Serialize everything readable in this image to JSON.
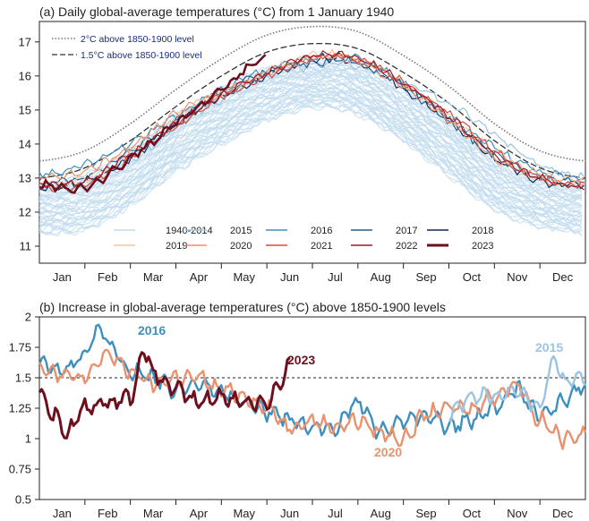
{
  "chart_data": [
    {
      "type": "line",
      "title": "(a) Daily global-average temperatures (°C) from 1 January 1940",
      "xlabel": "",
      "ylabel": "",
      "ylim": [
        10.5,
        17.6
      ],
      "yticks": [
        11,
        12,
        13,
        14,
        15,
        16,
        17
      ],
      "x_months": [
        "Jan",
        "Feb",
        "Mar",
        "Apr",
        "May",
        "Jun",
        "Jul",
        "Aug",
        "Sep",
        "Oct",
        "Nov",
        "Dec"
      ],
      "reference_lines": [
        {
          "name": "2°C above 1850-1900 level",
          "style": "dotted",
          "monthly": [
            13.5,
            13.8,
            14.6,
            15.6,
            16.5,
            17.2,
            17.45,
            17.3,
            16.6,
            15.7,
            14.6,
            13.8,
            13.5
          ]
        },
        {
          "name": "1.5°C above 1850-1900 level",
          "style": "dashed",
          "monthly": [
            13.0,
            13.3,
            14.1,
            15.1,
            16.0,
            16.7,
            16.95,
            16.8,
            16.1,
            15.2,
            14.1,
            13.3,
            13.0
          ]
        }
      ],
      "band": {
        "name": "1940-2014",
        "lower_monthly": [
          11.4,
          11.5,
          12.2,
          13.2,
          14.0,
          14.7,
          15.1,
          14.9,
          14.1,
          13.1,
          12.1,
          11.6,
          11.4
        ],
        "upper_monthly": [
          12.8,
          13.1,
          13.8,
          14.8,
          15.6,
          16.2,
          16.4,
          16.3,
          15.6,
          14.7,
          13.6,
          13.0,
          12.8
        ]
      },
      "series": [
        {
          "name": "2015",
          "color": "#9cc4e2",
          "monthly": [
            12.7,
            12.8,
            13.5,
            14.5,
            15.3,
            16.0,
            16.3,
            16.3,
            15.8,
            15.2,
            14.3,
            13.4,
            13.0
          ]
        },
        {
          "name": "2016",
          "color": "#3d8fc0",
          "monthly": [
            13.1,
            13.4,
            14.0,
            14.8,
            15.6,
            16.2,
            16.5,
            16.5,
            15.8,
            14.8,
            13.9,
            13.2,
            13.0
          ]
        },
        {
          "name": "2017",
          "color": "#1f5f98",
          "monthly": [
            12.9,
            13.0,
            13.8,
            14.7,
            15.5,
            16.1,
            16.4,
            16.4,
            15.7,
            14.7,
            13.7,
            13.1,
            12.9
          ]
        },
        {
          "name": "2018",
          "color": "#0e2a55",
          "monthly": [
            12.7,
            12.9,
            13.6,
            14.6,
            15.4,
            16.0,
            16.5,
            16.4,
            15.6,
            14.7,
            13.6,
            12.9,
            12.8
          ]
        },
        {
          "name": "2019",
          "color": "#f3c4a0",
          "monthly": [
            12.8,
            13.0,
            13.8,
            14.8,
            15.5,
            16.1,
            16.6,
            16.5,
            15.8,
            14.8,
            13.8,
            13.1,
            12.9
          ]
        },
        {
          "name": "2020",
          "color": "#e8926f",
          "monthly": [
            13.0,
            13.2,
            13.9,
            14.9,
            15.5,
            16.1,
            16.5,
            16.4,
            15.7,
            14.7,
            13.6,
            13.0,
            12.8
          ]
        },
        {
          "name": "2021",
          "color": "#d94a3a",
          "monthly": [
            12.7,
            12.8,
            13.6,
            14.5,
            15.4,
            16.0,
            16.5,
            16.5,
            15.8,
            14.9,
            13.8,
            13.0,
            12.8
          ]
        },
        {
          "name": "2022",
          "color": "#9c1c28",
          "monthly": [
            12.8,
            12.9,
            13.7,
            14.6,
            15.4,
            16.1,
            16.6,
            16.5,
            15.8,
            14.8,
            13.7,
            13.0,
            12.7
          ]
        },
        {
          "name": "2023",
          "color": "#6e0f1e",
          "monthly": [
            12.8,
            12.7,
            13.6,
            14.6,
            15.6,
            16.6
          ]
        }
      ],
      "legend_labels": [
        "1940-2014",
        "2015",
        "2016",
        "2017",
        "2018",
        "2019",
        "2020",
        "2021",
        "2022",
        "2023"
      ]
    },
    {
      "type": "line",
      "title": "(b) Increase in global-average temperatures (°C) above 1850-1900 levels",
      "xlabel": "",
      "ylabel": "",
      "ylim": [
        0.5,
        2.0
      ],
      "yticks": [
        "0.5",
        "0.75",
        "1",
        "1.25",
        "1.5",
        "1.75",
        "2"
      ],
      "x_months": [
        "Jan",
        "Feb",
        "Mar",
        "Apr",
        "May",
        "Jun",
        "Jul",
        "Aug",
        "Sep",
        "Oct",
        "Nov",
        "Dec"
      ],
      "threshold": 1.5,
      "series": [
        {
          "name": "2016",
          "color": "#3d8fc0",
          "x": [
            0,
            0.5,
            1,
            1.3,
            1.6,
            2,
            2.5,
            3,
            3.5,
            4,
            4.5,
            5,
            5.5,
            6,
            6.5,
            7,
            7.5,
            8,
            8.5,
            9,
            9.5,
            10,
            10.5,
            11,
            11.5,
            12
          ],
          "y": [
            1.62,
            1.55,
            1.68,
            1.92,
            1.75,
            1.55,
            1.5,
            1.4,
            1.45,
            1.38,
            1.3,
            1.22,
            1.15,
            1.1,
            1.1,
            1.3,
            1.05,
            1.15,
            1.2,
            1.1,
            1.15,
            1.25,
            1.4,
            1.2,
            1.3,
            1.45
          ]
        },
        {
          "name": "2020",
          "color": "#e8926f",
          "x": [
            0,
            0.5,
            1,
            1.5,
            2,
            2.5,
            3,
            3.5,
            4,
            4.5,
            5,
            5.5,
            6,
            6.5,
            7,
            7.5,
            8,
            8.5,
            9,
            9.5,
            10,
            10.5,
            11,
            11.5,
            12
          ],
          "y": [
            1.6,
            1.52,
            1.5,
            1.7,
            1.55,
            1.45,
            1.5,
            1.5,
            1.4,
            1.35,
            1.25,
            1.1,
            1.15,
            1.1,
            1.15,
            1.05,
            1.0,
            1.2,
            1.25,
            1.25,
            1.35,
            1.45,
            1.15,
            1.0,
            1.05
          ]
        },
        {
          "name": "2015",
          "color": "#9cc4e2",
          "x": [
            9,
            9.5,
            10,
            10.5,
            11,
            11.3,
            11.6,
            12
          ],
          "y": [
            1.2,
            1.35,
            1.35,
            1.4,
            1.25,
            1.65,
            1.45,
            1.5
          ]
        },
        {
          "name": "2023",
          "color": "#6e0f1e",
          "x": [
            0,
            0.3,
            0.6,
            1,
            1.5,
            2,
            2.3,
            2.6,
            3,
            3.5,
            4,
            4.5,
            5,
            5.3,
            5.5
          ],
          "y": [
            1.4,
            1.2,
            1.05,
            1.25,
            1.3,
            1.35,
            1.7,
            1.5,
            1.4,
            1.3,
            1.35,
            1.3,
            1.3,
            1.45,
            1.6
          ]
        }
      ],
      "annotations": [
        "2016",
        "2023",
        "2015",
        "2020"
      ]
    }
  ],
  "panel_a": {
    "title": "(a) Daily global-average temperatures (°C) from 1 January 1940",
    "ref_2c": "2°C above 1850-1900 level",
    "ref_15c": "1.5°C above 1850-1900 level",
    "yticks": [
      "11",
      "12",
      "13",
      "14",
      "15",
      "16",
      "17"
    ]
  },
  "panel_b": {
    "title": "(b) Increase in global-average temperatures (°C) above 1850-1900 levels",
    "yticks": [
      "0.5",
      "0.75",
      "1",
      "1.25",
      "1.5",
      "1.75",
      "2"
    ],
    "ann_2016": "2016",
    "ann_2023": "2023",
    "ann_2015": "2015",
    "ann_2020": "2020"
  },
  "months": [
    "Jan",
    "Feb",
    "Mar",
    "Apr",
    "May",
    "Jun",
    "Jul",
    "Aug",
    "Sep",
    "Oct",
    "Nov",
    "Dec"
  ],
  "legend": [
    "1940-2014",
    "2015",
    "2016",
    "2017",
    "2018",
    "2019",
    "2020",
    "2021",
    "2022",
    "2023"
  ]
}
